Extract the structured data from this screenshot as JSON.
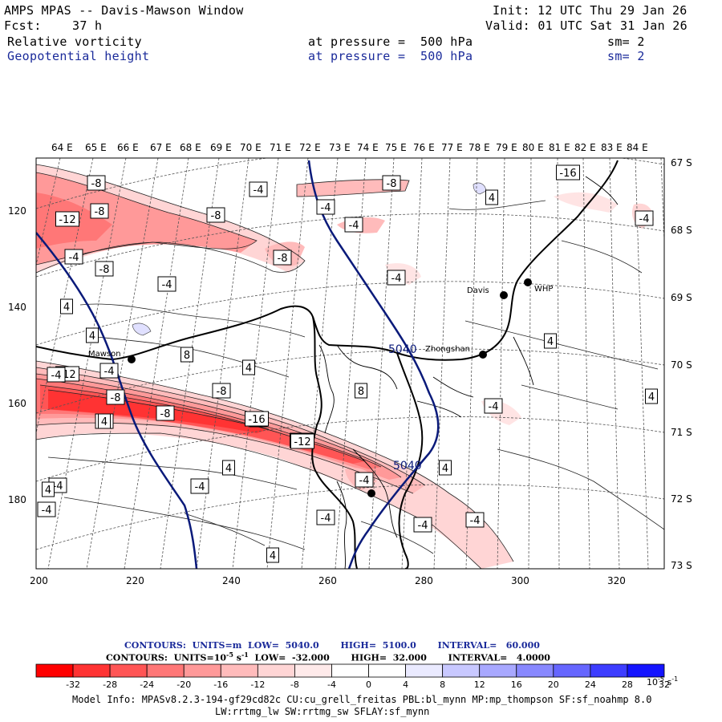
{
  "header": {
    "title": "AMPS MPAS -- Davis-Mawson Window",
    "init": "Init: 12 UTC Thu 29 Jan 26",
    "fcst_label": "Fcst:",
    "fcst_value": "37 h",
    "valid": "Valid: 01 UTC Sat 31 Jan 26",
    "field1": "Relative vorticity",
    "field1_level": "at pressure =  500 hPa",
    "field1_sm": "sm= 2",
    "field2": "Geopotential height",
    "field2_level": "at pressure =  500 hPa",
    "field2_sm": "sm= 2"
  },
  "map": {
    "top_lon_labels": [
      "64 E",
      "65 E",
      "66 E",
      "67 E",
      "68 E",
      "69 E",
      "70 E",
      "71 E",
      "72 E",
      "73 E",
      "74 E",
      "75 E",
      "76 E",
      "77 E",
      "78 E",
      "79 E",
      "80 E",
      "81 E",
      "82 E",
      "83 E",
      "84 E"
    ],
    "right_lat_labels": [
      "67 S",
      "68 S",
      "69 S",
      "70 S",
      "71 S",
      "72 S",
      "73 S"
    ],
    "left_y_ticks": [
      "120",
      "140",
      "160",
      "180"
    ],
    "bottom_x_ticks": [
      "200",
      "220",
      "240",
      "260",
      "280",
      "300",
      "320"
    ],
    "stations": [
      {
        "name": "Mawson"
      },
      {
        "name": "Davis"
      },
      {
        "name": "WHP"
      },
      {
        "name": "Zhongshan"
      }
    ],
    "height_contour_labels": [
      "5040",
      "5040"
    ],
    "vorticity_labels": [
      "-8",
      "-8",
      "-4",
      "-8",
      "-4",
      "-8",
      "-4",
      "4",
      "-4",
      "-12",
      "-8",
      "-4",
      "-12",
      "-8",
      "-4",
      "-8",
      "-4",
      "4",
      "-4",
      "8",
      "4",
      "8",
      "4",
      "-12",
      "-8",
      "-4",
      "-16",
      "-4",
      "-8",
      "-4",
      "-16",
      "-4",
      "-12",
      "4",
      "4",
      "4",
      "4",
      "-4",
      "-4",
      "-4",
      "-4",
      "4",
      "-4",
      "-4",
      "-4",
      "4",
      "4",
      "-4"
    ],
    "colors": {
      "height_contour": "#0a1a7a",
      "coast": "#000000"
    }
  },
  "legend": {
    "line1_contours": "CONTOURS:",
    "line1_units": "UNITS=m",
    "line1_low": "LOW=  5040.0",
    "line1_high": "HIGH=  5100.0",
    "line1_interval": "INTERVAL=   60.000",
    "line2_contours": "CONTOURS:",
    "line2_units_prefix": "UNITS=10",
    "line2_units_exp": "-5",
    "line2_units_suffix": " s",
    "line2_units_exp2": "-1",
    "line2_low": "LOW=  -32.000",
    "line2_high": "HIGH=  32.000",
    "line2_interval": "INTERVAL=   4.0000",
    "colorbar_labels": [
      "-32",
      "-28",
      "-24",
      "-20",
      "-16",
      "-12",
      "-8",
      "-4",
      "0",
      "4",
      "8",
      "12",
      "16",
      "20",
      "24",
      "28",
      "32"
    ],
    "colorbar_units": "10",
    "colorbar_units_exp": "-5",
    "colorbar_units_s": " s",
    "colorbar_units_exp2": "-1",
    "colorbar_colors": [
      "#ff0000",
      "#ff3333",
      "#ff5555",
      "#ff7777",
      "#ff9999",
      "#ffbbbb",
      "#ffd5d5",
      "#ffeaea",
      "#ffffff",
      "#ffffff",
      "#eaeaff",
      "#c8c8ff",
      "#a8a8ff",
      "#8888ff",
      "#6666ff",
      "#3d3dff",
      "#1414ff"
    ]
  },
  "footer": {
    "line1": "Model Info: MPASv8.2.3-194-gf29cd82c CU:cu_grell_freitas PBL:bl_mynn MP:mp_thompson SF:sf_noahmp 8.0",
    "line2": "LW:rrtmg_lw SW:rrtmg_sw SFLAY:sf_mynn"
  }
}
